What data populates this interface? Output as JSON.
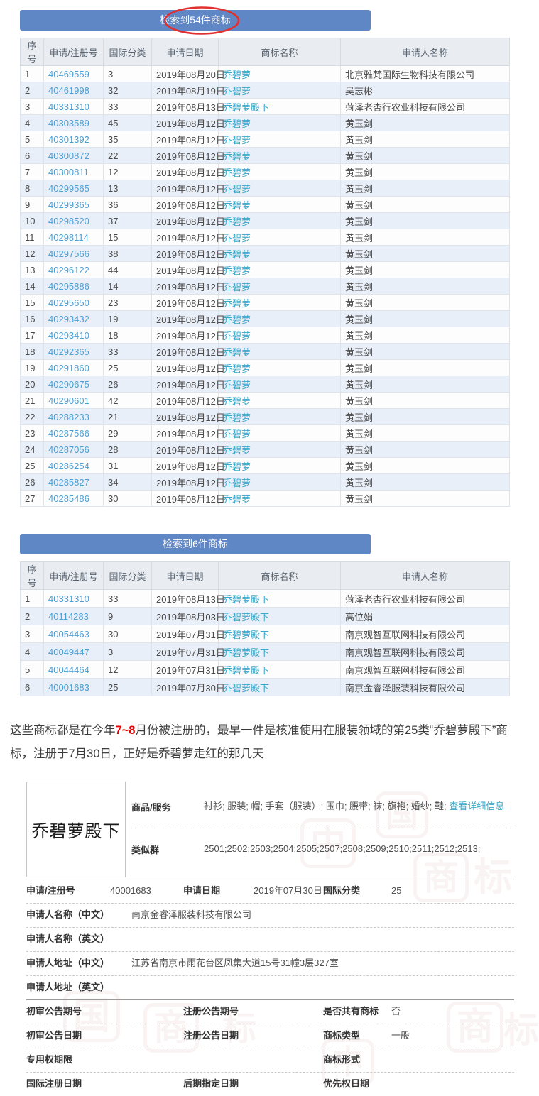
{
  "colors": {
    "banner_bg": "#5f87c5",
    "annotation_red": "#e03030",
    "reg_link": "#4d9ed2",
    "mark_link": "#3aa7c9",
    "even_row_bg": "#e9eff8",
    "header_row_bg": "#e9edf2",
    "highlight_red": "#e60000"
  },
  "table1": {
    "banner": "检索到54件商标",
    "columns": [
      "序号",
      "申请/注册号",
      "国际分类",
      "申请日期",
      "商标名称",
      "申请人名称"
    ],
    "rows": [
      [
        "1",
        "40469559",
        "3",
        "2019年08月20日",
        "乔碧萝",
        "北京雅梵国际生物科技有限公司"
      ],
      [
        "2",
        "40461998",
        "32",
        "2019年08月19日",
        "乔碧萝",
        "吴志彬"
      ],
      [
        "3",
        "40331310",
        "33",
        "2019年08月13日",
        "乔碧萝殿下",
        "菏泽老杏行农业科技有限公司"
      ],
      [
        "4",
        "40303589",
        "45",
        "2019年08月12日",
        "乔碧萝",
        "黄玉剑"
      ],
      [
        "5",
        "40301392",
        "35",
        "2019年08月12日",
        "乔碧萝",
        "黄玉剑"
      ],
      [
        "6",
        "40300872",
        "22",
        "2019年08月12日",
        "乔碧萝",
        "黄玉剑"
      ],
      [
        "7",
        "40300811",
        "12",
        "2019年08月12日",
        "乔碧萝",
        "黄玉剑"
      ],
      [
        "8",
        "40299565",
        "13",
        "2019年08月12日",
        "乔碧萝",
        "黄玉剑"
      ],
      [
        "9",
        "40299365",
        "36",
        "2019年08月12日",
        "乔碧萝",
        "黄玉剑"
      ],
      [
        "10",
        "40298520",
        "37",
        "2019年08月12日",
        "乔碧萝",
        "黄玉剑"
      ],
      [
        "11",
        "40298114",
        "15",
        "2019年08月12日",
        "乔碧萝",
        "黄玉剑"
      ],
      [
        "12",
        "40297566",
        "38",
        "2019年08月12日",
        "乔碧萝",
        "黄玉剑"
      ],
      [
        "13",
        "40296122",
        "44",
        "2019年08月12日",
        "乔碧萝",
        "黄玉剑"
      ],
      [
        "14",
        "40295886",
        "14",
        "2019年08月12日",
        "乔碧萝",
        "黄玉剑"
      ],
      [
        "15",
        "40295650",
        "23",
        "2019年08月12日",
        "乔碧萝",
        "黄玉剑"
      ],
      [
        "16",
        "40293432",
        "19",
        "2019年08月12日",
        "乔碧萝",
        "黄玉剑"
      ],
      [
        "17",
        "40293410",
        "18",
        "2019年08月12日",
        "乔碧萝",
        "黄玉剑"
      ],
      [
        "18",
        "40292365",
        "33",
        "2019年08月12日",
        "乔碧萝",
        "黄玉剑"
      ],
      [
        "19",
        "40291860",
        "25",
        "2019年08月12日",
        "乔碧萝",
        "黄玉剑"
      ],
      [
        "20",
        "40290675",
        "26",
        "2019年08月12日",
        "乔碧萝",
        "黄玉剑"
      ],
      [
        "21",
        "40290601",
        "42",
        "2019年08月12日",
        "乔碧萝",
        "黄玉剑"
      ],
      [
        "22",
        "40288233",
        "21",
        "2019年08月12日",
        "乔碧萝",
        "黄玉剑"
      ],
      [
        "23",
        "40287566",
        "29",
        "2019年08月12日",
        "乔碧萝",
        "黄玉剑"
      ],
      [
        "24",
        "40287056",
        "28",
        "2019年08月12日",
        "乔碧萝",
        "黄玉剑"
      ],
      [
        "25",
        "40286254",
        "31",
        "2019年08月12日",
        "乔碧萝",
        "黄玉剑"
      ],
      [
        "26",
        "40285827",
        "34",
        "2019年08月12日",
        "乔碧萝",
        "黄玉剑"
      ],
      [
        "27",
        "40285486",
        "30",
        "2019年08月12日",
        "乔碧萝",
        "黄玉剑"
      ]
    ]
  },
  "table2": {
    "banner": "检索到6件商标",
    "columns": [
      "序号",
      "申请/注册号",
      "国际分类",
      "申请日期",
      "商标名称",
      "申请人名称"
    ],
    "rows": [
      [
        "1",
        "40331310",
        "33",
        "2019年08月13日",
        "乔碧萝殿下",
        "菏泽老杏行农业科技有限公司"
      ],
      [
        "2",
        "40114283",
        "9",
        "2019年08月03日",
        "乔碧萝殿下",
        "高位娟"
      ],
      [
        "3",
        "40054463",
        "30",
        "2019年07月31日",
        "乔碧萝殿下",
        "南京观智互联网科技有限公司"
      ],
      [
        "4",
        "40049447",
        "3",
        "2019年07月31日",
        "乔碧萝殿下",
        "南京观智互联网科技有限公司"
      ],
      [
        "5",
        "40044464",
        "12",
        "2019年07月31日",
        "乔碧萝殿下",
        "南京观智互联网科技有限公司"
      ],
      [
        "6",
        "40001683",
        "25",
        "2019年07月30日",
        "乔碧萝殿下",
        "南京金睿泽服装科技有限公司"
      ]
    ]
  },
  "paragraph": {
    "part1": "这些商标都是在今年",
    "highlight": "7~8",
    "part2": "月份被注册的，最早一件是核准使用在服装领域的第25类“乔碧萝殿下”商标，注册于7月30日，正好是乔碧萝走红的那几天"
  },
  "detail": {
    "mark_image_text": "乔碧萝殿下",
    "goods_label": "商品/服务",
    "goods_value": "衬衫; 服装; 帽; 手套（服装）; 围巾; 腰带; 袜; 旗袍; 婚纱; 鞋;",
    "goods_link": "查看详细信息",
    "similar_label": "类似群",
    "similar_value": "2501;2502;2503;2504;2505;2507;2508;2509;2510;2511;2512;2513;",
    "reg_label": "申请/注册号",
    "reg_value": "40001683",
    "app_date_label": "申请日期",
    "app_date_value": "2019年07月30日",
    "intl_class_label": "国际分类",
    "intl_class_value": "25",
    "applicant_cn_label": "申请人名称（中文）",
    "applicant_cn_value": "南京金睿泽服装科技有限公司",
    "applicant_en_label": "申请人名称（英文）",
    "applicant_en_value": "",
    "address_cn_label": "申请人地址（中文）",
    "address_cn_value": "江苏省南京市雨花台区凤集大道15号31幢3层327室",
    "address_en_label": "申请人地址（英文）",
    "address_en_value": "",
    "first_gazette_no_label": "初审公告期号",
    "first_gazette_no_value": "",
    "reg_gazette_no_label": "注册公告期号",
    "reg_gazette_no_value": "",
    "shared_label": "是否共有商标",
    "shared_value": "否",
    "first_gazette_date_label": "初审公告日期",
    "first_gazette_date_value": "",
    "reg_gazette_date_label": "注册公告日期",
    "reg_gazette_date_value": "",
    "mark_type_label": "商标类型",
    "mark_type_value": "一般",
    "exclusive_period_label": "专用权期限",
    "exclusive_period_value": "",
    "mark_form_label": "商标形式",
    "mark_form_value": "",
    "intl_reg_date_label": "国际注册日期",
    "intl_reg_date_value": "",
    "later_designation_label": "后期指定日期",
    "later_designation_value": "",
    "priority_date_label": "优先权日期",
    "priority_date_value": ""
  },
  "watermark_chars": [
    "中",
    "国",
    "商",
    "标"
  ]
}
